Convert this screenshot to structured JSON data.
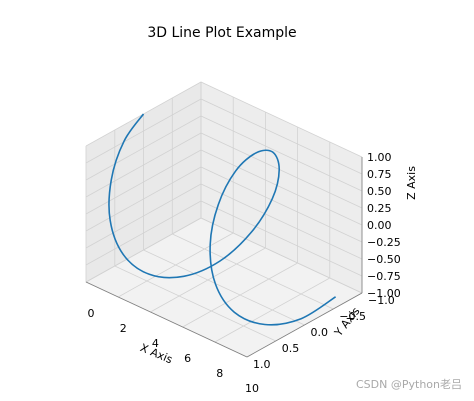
{
  "chart_data": {
    "type": "line",
    "projection": "3d",
    "title": "3D Line Plot Example",
    "xlabel": "X Axis",
    "ylabel": "Y Axis",
    "zlabel": "Z Axis",
    "xlim": [
      0,
      10
    ],
    "ylim": [
      -1,
      1
    ],
    "zlim": [
      -1,
      1
    ],
    "xticks": [
      "0",
      "2",
      "4",
      "6",
      "8",
      "10"
    ],
    "yticks": [
      "−1.0",
      "−0.5",
      "0.0",
      "0.5",
      "1.0"
    ],
    "zticks": [
      "−1.00",
      "−0.75",
      "−0.50",
      "−0.25",
      "0.00",
      "0.25",
      "0.50",
      "0.75",
      "1.00"
    ],
    "grid": true,
    "series": [
      {
        "color": "#1f77b4",
        "x": [
          0.0,
          0.5,
          1.0,
          1.5,
          2.0,
          2.5,
          3.0,
          3.5,
          4.0,
          4.5,
          5.0,
          5.5,
          6.0,
          6.5,
          7.0,
          7.5,
          8.0,
          8.5,
          9.0,
          9.5,
          10.0
        ],
        "y": [
          0.0,
          0.48,
          0.84,
          1.0,
          0.91,
          0.6,
          0.14,
          -0.35,
          -0.76,
          -0.98,
          -0.96,
          -0.71,
          -0.28,
          0.22,
          0.66,
          0.94,
          0.99,
          0.8,
          0.41,
          -0.08,
          -0.54
        ],
        "z": [
          1.0,
          0.88,
          0.54,
          0.07,
          -0.42,
          -0.8,
          -0.99,
          -0.94,
          -0.65,
          -0.21,
          0.28,
          0.71,
          0.96,
          0.98,
          0.75,
          0.35,
          -0.15,
          -0.6,
          -0.91,
          -1.0,
          -0.84
        ]
      }
    ]
  },
  "watermark": "CSDN @Python老吕"
}
